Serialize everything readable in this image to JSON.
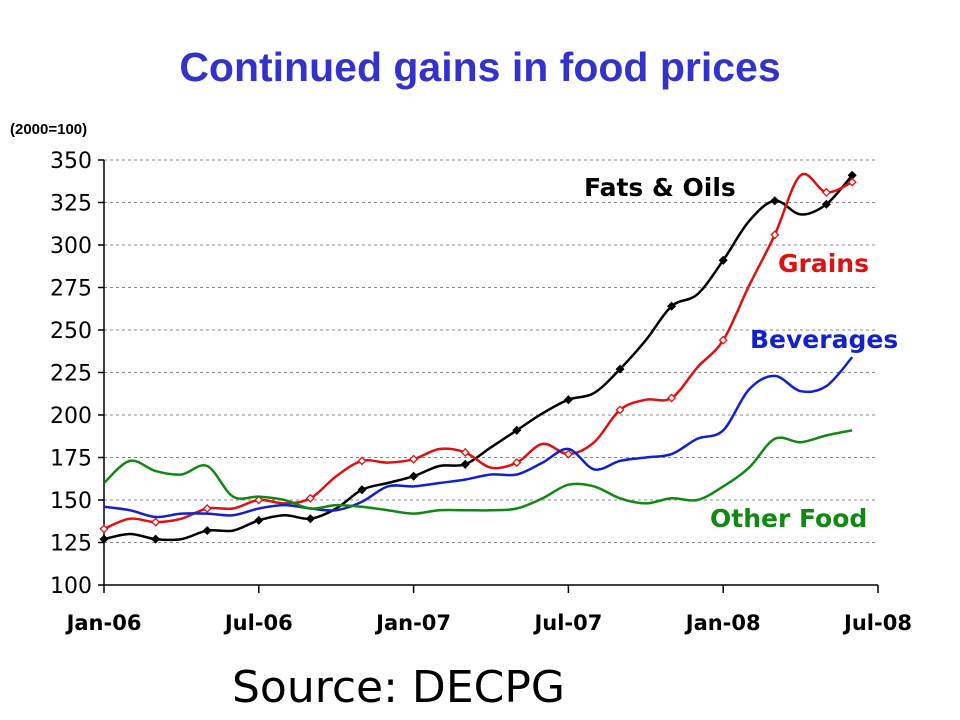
{
  "page": {
    "title": "Continued gains in food prices",
    "unit_label": "(2000=100)",
    "source": "Source: DECPG"
  },
  "chart_data": {
    "type": "line",
    "title": "Continued gains in food prices",
    "ylabel": "(2000=100)",
    "ylim": [
      100,
      350
    ],
    "yticks": [
      100,
      125,
      150,
      175,
      200,
      225,
      250,
      275,
      300,
      325,
      350
    ],
    "xlim": [
      "2006-01",
      "2008-07"
    ],
    "xticks": [
      "Jan-06",
      "Jul-06",
      "Jan-07",
      "Jul-07",
      "Jan-08",
      "Jul-08"
    ],
    "grid": "horizontal dashed",
    "x": [
      "2006-01",
      "2006-02",
      "2006-03",
      "2006-04",
      "2006-05",
      "2006-06",
      "2006-07",
      "2006-08",
      "2006-09",
      "2006-10",
      "2006-11",
      "2006-12",
      "2007-01",
      "2007-02",
      "2007-03",
      "2007-04",
      "2007-05",
      "2007-06",
      "2007-07",
      "2007-08",
      "2007-09",
      "2007-10",
      "2007-11",
      "2007-12",
      "2008-01",
      "2008-02",
      "2008-03",
      "2008-04",
      "2008-05",
      "2008-06"
    ],
    "series": [
      {
        "name": "Fats & Oils",
        "color": "#000000",
        "marker": "filled-diamond",
        "values": [
          127,
          130,
          127,
          127,
          132,
          132,
          138,
          141,
          139,
          145,
          156,
          160,
          164,
          170,
          171,
          181,
          191,
          201,
          209,
          213,
          227,
          244,
          264,
          271,
          291,
          314,
          326,
          318,
          324,
          341
        ]
      },
      {
        "name": "Grains",
        "color": "#dd1111",
        "marker": "hollow-diamond",
        "values": [
          133,
          139,
          137,
          139,
          145,
          145,
          150,
          148,
          151,
          164,
          173,
          172,
          174,
          180,
          178,
          169,
          172,
          183,
          177,
          184,
          203,
          209,
          210,
          228,
          244,
          276,
          306,
          341,
          331,
          337
        ]
      },
      {
        "name": "Beverages",
        "color": "#1122cc",
        "marker": "none",
        "values": [
          146,
          144,
          140,
          142,
          142,
          141,
          145,
          147,
          145,
          144,
          149,
          158,
          158,
          160,
          162,
          165,
          165,
          172,
          180,
          168,
          173,
          175,
          177,
          186,
          191,
          215,
          223,
          214,
          217,
          234
        ]
      },
      {
        "name": "Other Food",
        "color": "#118811",
        "marker": "none",
        "values": [
          160,
          173,
          167,
          165,
          170,
          152,
          152,
          150,
          145,
          147,
          146,
          144,
          142,
          144,
          144,
          144,
          145,
          151,
          159,
          158,
          151,
          148,
          151,
          150,
          158,
          169,
          186,
          184,
          188,
          191
        ]
      }
    ]
  }
}
